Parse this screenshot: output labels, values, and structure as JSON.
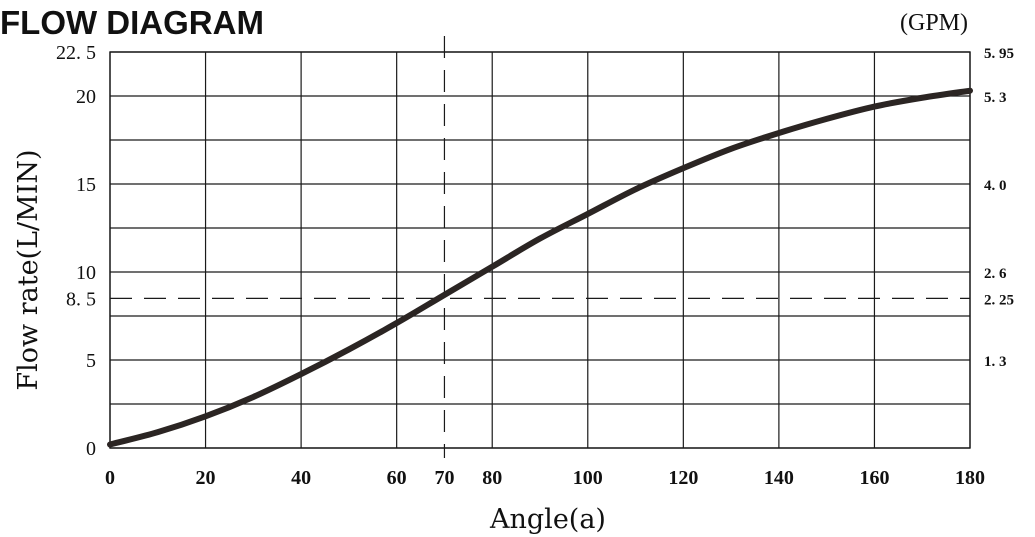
{
  "chart_data": {
    "type": "line",
    "title": "FLOW DIAGRAM",
    "secondary_unit": "(GPM)",
    "xlabel": "Angle(a)",
    "ylabel": "Flow rate(L/MIN)",
    "xlim": [
      0,
      180
    ],
    "ylim": [
      0,
      22.5
    ],
    "grid": true,
    "x_ticks": [
      {
        "value": 0,
        "label": "0"
      },
      {
        "value": 20,
        "label": "20"
      },
      {
        "value": 40,
        "label": "40"
      },
      {
        "value": 60,
        "label": "60"
      },
      {
        "value": 70,
        "label": "70"
      },
      {
        "value": 80,
        "label": "80"
      },
      {
        "value": 100,
        "label": "100"
      },
      {
        "value": 120,
        "label": "120"
      },
      {
        "value": 140,
        "label": "140"
      },
      {
        "value": 160,
        "label": "160"
      },
      {
        "value": 180,
        "label": "180"
      }
    ],
    "x_grid": [
      0,
      20,
      40,
      60,
      80,
      100,
      120,
      140,
      160,
      180
    ],
    "y_ticks": [
      {
        "value": 0,
        "label": "0"
      },
      {
        "value": 5,
        "label": "5"
      },
      {
        "value": 8.5,
        "label": "8. 5"
      },
      {
        "value": 10,
        "label": "10"
      },
      {
        "value": 15,
        "label": "15"
      },
      {
        "value": 20,
        "label": "20"
      },
      {
        "value": 22.5,
        "label": "22. 5"
      }
    ],
    "y_grid": [
      0,
      2.5,
      5,
      7.5,
      10,
      12.5,
      15,
      17.5,
      20,
      22.5
    ],
    "right_ticks": [
      {
        "value": 5,
        "label": "1. 3"
      },
      {
        "value": 8.5,
        "label": "2. 25"
      },
      {
        "value": 10,
        "label": "2. 6"
      },
      {
        "value": 15,
        "label": "4. 0"
      },
      {
        "value": 20,
        "label": "5. 3"
      },
      {
        "value": 22.5,
        "label": "5. 95"
      }
    ],
    "reference_lines": {
      "x": 70,
      "y": 8.5
    },
    "series": [
      {
        "x": [
          0,
          10,
          20,
          30,
          40,
          50,
          60,
          70,
          80,
          90,
          100,
          110,
          120,
          130,
          140,
          150,
          160,
          170,
          180
        ],
        "values": [
          0.2,
          0.9,
          1.8,
          2.9,
          4.2,
          5.6,
          7.1,
          8.7,
          10.3,
          11.9,
          13.3,
          14.7,
          15.9,
          17.0,
          17.9,
          18.7,
          19.4,
          19.9,
          20.3
        ]
      }
    ]
  }
}
